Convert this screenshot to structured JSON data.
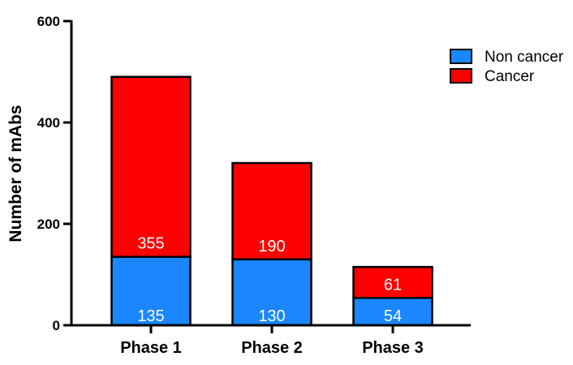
{
  "chart_data": {
    "type": "bar",
    "stacked": true,
    "categories": [
      "Phase 1",
      "Phase 2",
      "Phase 3"
    ],
    "series": [
      {
        "name": "Non cancer",
        "values": [
          135,
          130,
          54
        ],
        "color": "#1a86ff"
      },
      {
        "name": "Cancer",
        "values": [
          355,
          190,
          61
        ],
        "color": "#ff0000"
      }
    ],
    "title": "",
    "xlabel": "",
    "ylabel": "Number of mAbs",
    "ylim": [
      0,
      600
    ],
    "yticks": [
      0,
      200,
      400,
      600
    ],
    "legend_position": "top-right",
    "grid": false
  }
}
